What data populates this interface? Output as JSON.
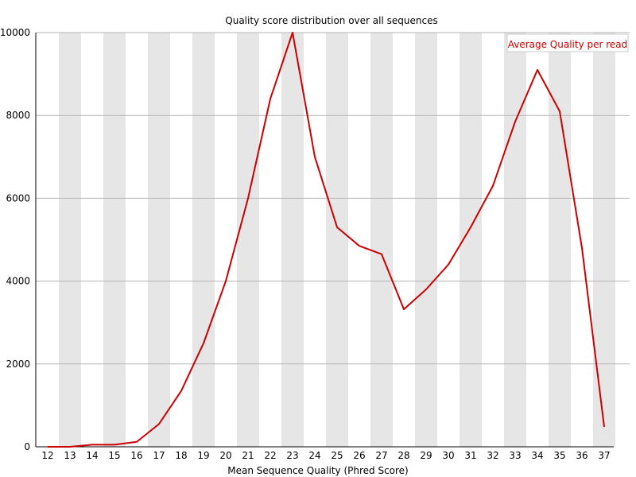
{
  "chart_data": {
    "type": "line",
    "title": "Quality score distribution over all sequences",
    "xlabel": "Mean Sequence Quality (Phred Score)",
    "ylabel": "",
    "categories": [
      "12",
      "13",
      "14",
      "15",
      "16",
      "17",
      "18",
      "19",
      "20",
      "21",
      "22",
      "23",
      "24",
      "25",
      "26",
      "27",
      "28",
      "29",
      "30",
      "31",
      "32",
      "33",
      "34",
      "35",
      "36",
      "37"
    ],
    "series": [
      {
        "name": "Average Quality per read",
        "color": "#cc0000",
        "values": [
          0,
          0,
          50,
          50,
          120,
          550,
          1350,
          2500,
          4000,
          6000,
          8400,
          10000,
          7000,
          5300,
          4850,
          4650,
          3320,
          3800,
          4400,
          5300,
          6300,
          7850,
          9100,
          8100,
          4800,
          480
        ]
      }
    ],
    "ylim": [
      0,
      10000
    ],
    "yticks": [
      "0",
      "2000",
      "4000",
      "6000",
      "8000",
      "10000"
    ],
    "ytick_values": [
      0,
      2000,
      4000,
      6000,
      8000,
      10000
    ],
    "grid": "horizontal",
    "band_color": "#e6e6e6",
    "legend_position": "top-right"
  }
}
